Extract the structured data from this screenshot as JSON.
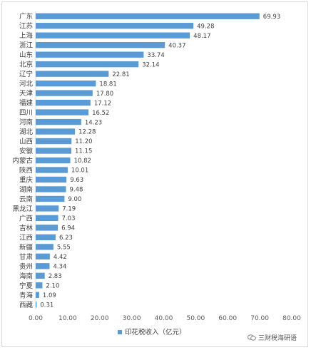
{
  "chart_data": {
    "type": "bar",
    "orientation": "horizontal",
    "categories": [
      "广东",
      "江苏",
      "上海",
      "浙江",
      "山东",
      "北京",
      "辽宁",
      "河北",
      "天津",
      "福建",
      "四川",
      "河南",
      "湖北",
      "山西",
      "安徽",
      "内蒙古",
      "陕西",
      "重庆",
      "湖南",
      "云南",
      "黑龙江",
      "广西",
      "吉林",
      "江西",
      "新疆",
      "甘肃",
      "贵州",
      "海南",
      "宁夏",
      "青海",
      "西藏"
    ],
    "series": [
      {
        "name": "印花税收入（亿元）",
        "values": [
          69.93,
          49.28,
          48.17,
          40.37,
          33.74,
          32.14,
          22.81,
          18.81,
          17.8,
          17.12,
          16.52,
          14.23,
          12.28,
          11.2,
          11.15,
          10.82,
          10.01,
          9.63,
          9.48,
          9.0,
          7.19,
          7.03,
          6.94,
          6.23,
          5.55,
          4.42,
          4.34,
          2.83,
          2.1,
          1.09,
          0.31
        ],
        "labels": [
          "69.93",
          "49.28",
          "48.17",
          "40.37",
          "33.74",
          "32.14",
          "22.81",
          "18.81",
          "17.80",
          "17.12",
          "16.52",
          "14.23",
          "12.28",
          "11.20",
          "11.15",
          "10.82",
          "10.01",
          "9.63",
          "9.48",
          "9.00",
          "7.19",
          "7.03",
          "6.94",
          "6.23",
          "5.55",
          "4.42",
          "4.34",
          "2.83",
          "2.10",
          "1.09",
          "0.31"
        ]
      }
    ],
    "x_ticks": [
      "0.00",
      "10.00",
      "20.00",
      "30.00",
      "40.00",
      "50.00",
      "60.00",
      "70.00",
      "80.00"
    ],
    "xlim": [
      0,
      80
    ],
    "grid": false,
    "legend_position": "bottom"
  },
  "colors": {
    "bar": "#5b9bd5",
    "axis": "#d9d9d9",
    "text": "#404040"
  },
  "watermark": {
    "text": "三财税海研语",
    "icon": "wechat-icon"
  }
}
